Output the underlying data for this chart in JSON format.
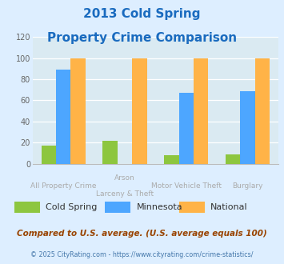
{
  "title_line1": "2013 Cold Spring",
  "title_line2": "Property Crime Comparison",
  "cold_spring": [
    17,
    22,
    8,
    9
  ],
  "minnesota": [
    89,
    0,
    67,
    69
  ],
  "national": [
    100,
    100,
    100,
    100
  ],
  "colors": {
    "cold_spring": "#8dc63f",
    "minnesota": "#4da6ff",
    "national": "#ffb347"
  },
  "ylim": [
    0,
    120
  ],
  "yticks": [
    0,
    20,
    40,
    60,
    80,
    100,
    120
  ],
  "title_color": "#1a6bbf",
  "bg_color": "#ddeeff",
  "plot_bg": "#daeaf2",
  "footer_text": "Compared to U.S. average. (U.S. average equals 100)",
  "credit_text": "© 2025 CityRating.com - https://www.cityrating.com/crime-statistics/",
  "legend_labels": [
    "Cold Spring",
    "Minnesota",
    "National"
  ],
  "xlabel_color": "#aaaaaa",
  "x_label_top": [
    "All Property Crime",
    "Arson",
    "Motor Vehicle Theft",
    "Burglary"
  ],
  "x_label_bot": [
    "",
    "Larceny & Theft",
    "",
    ""
  ]
}
